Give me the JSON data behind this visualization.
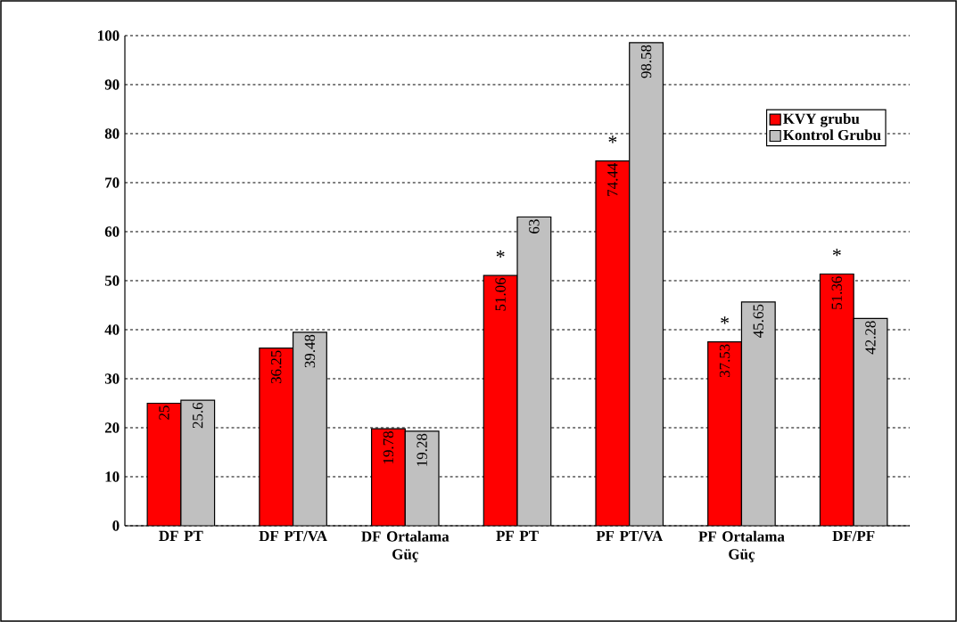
{
  "chart_data": {
    "type": "bar",
    "categories": [
      "DF PT",
      "DF PT/VA",
      "DF Ortalama Güç",
      "PF PT",
      "PF PT/VA",
      "PF Ortalama Güç",
      "DF/PF"
    ],
    "series": [
      {
        "name": "KVY grubu",
        "color": "#ff0000",
        "values": [
          25,
          36.25,
          19.78,
          51.06,
          74.44,
          37.53,
          51.36
        ],
        "value_labels": [
          "25",
          "36.25",
          "19.78",
          "51.06",
          "74.44",
          "37.53",
          "51.36"
        ]
      },
      {
        "name": "Kontrol Grubu",
        "color": "#c0c0c0",
        "values": [
          25.6,
          39.48,
          19.28,
          63,
          98.58,
          45.65,
          42.28
        ],
        "value_labels": [
          "25.6",
          "39.48",
          "19.28",
          "63",
          "98.58",
          "45.65",
          "42.28"
        ]
      }
    ],
    "ylim": [
      0,
      100
    ],
    "yticks": [
      0,
      10,
      20,
      30,
      40,
      50,
      60,
      70,
      80,
      90,
      100
    ],
    "grid": "y",
    "legend": "top right",
    "annotations": [
      {
        "text": "*",
        "x": "PF PT",
        "y": 51.06
      },
      {
        "text": "*",
        "x": "PF PT/VA",
        "y": 74.44
      },
      {
        "text": "*",
        "x": "PF Ortalama Güç",
        "y": 37.53
      },
      {
        "text": "*",
        "x": "DF/PF",
        "y": 51.36
      }
    ]
  }
}
